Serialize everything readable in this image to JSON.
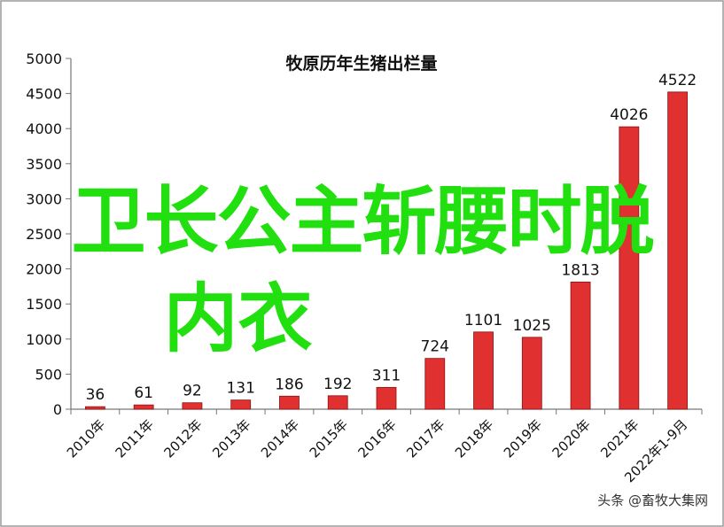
{
  "overlay": {
    "line1": "卫长公主斩腰时脱",
    "line2": "内衣"
  },
  "watermark": "头条 @畜牧大集网",
  "chart_data": {
    "type": "bar",
    "title": "牧原历年生猪出栏量",
    "xlabel": "",
    "ylabel": "",
    "categories": [
      "2010年",
      "2011年",
      "2012年",
      "2013年",
      "2014年",
      "2015年",
      "2016年",
      "2017年",
      "2018年",
      "2019年",
      "2020年",
      "2021年",
      "2022年1-9月"
    ],
    "values": [
      36,
      61,
      92,
      131,
      186,
      192,
      311,
      724,
      1101,
      1025,
      1813,
      4026,
      4522
    ],
    "data_labels": [
      "36",
      "61",
      "92",
      "131",
      "186",
      "192",
      "311",
      "724",
      "1101",
      "1025",
      "1813",
      "4026",
      "4522"
    ],
    "ylim": [
      0,
      5000
    ],
    "yticks": [
      "0",
      "500",
      "1000",
      "1500",
      "2000",
      "2500",
      "3000",
      "3500",
      "4000",
      "4500",
      "5000"
    ],
    "grid": false,
    "legend": "none",
    "bar_color": "#e03030",
    "bar_edge_color": "#8a1414"
  }
}
